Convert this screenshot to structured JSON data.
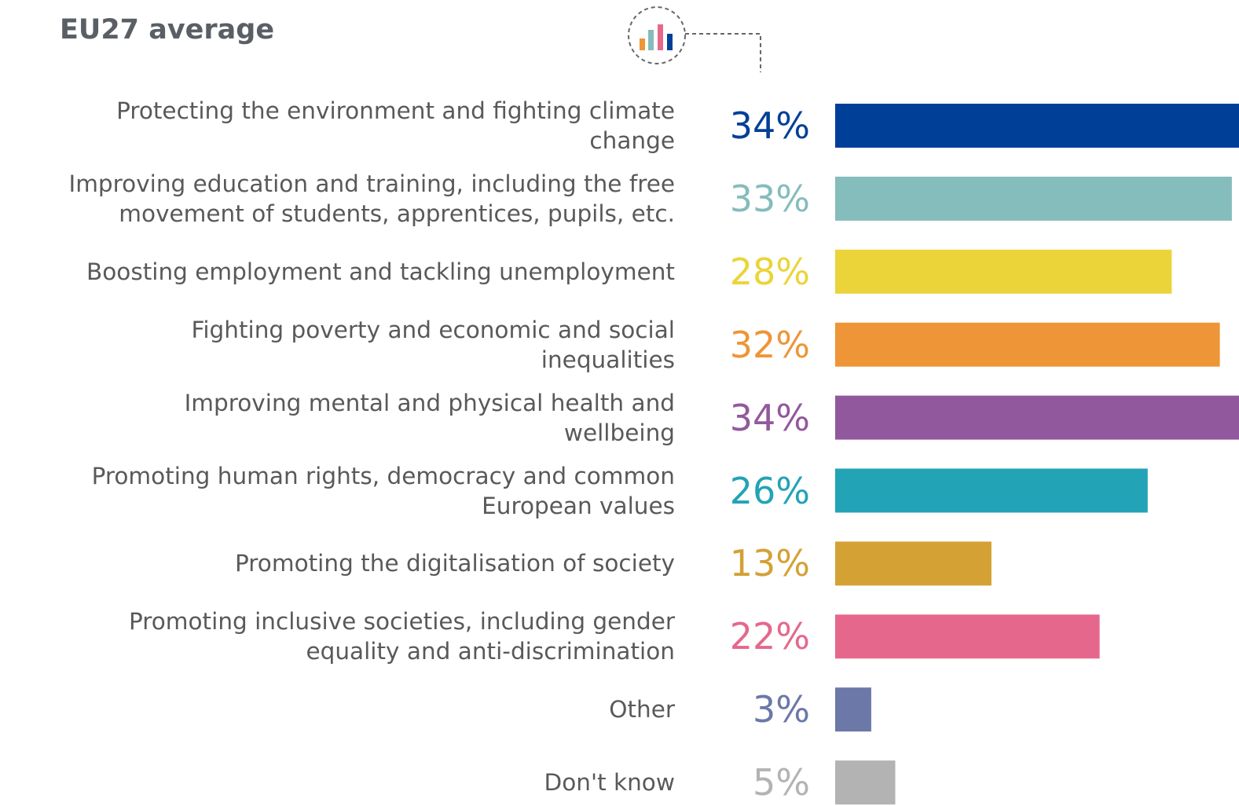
{
  "chart_data": {
    "type": "bar",
    "orientation": "horizontal",
    "title": "EU27 average",
    "categories": [
      "Protecting the environment and fighting climate\nchange",
      "Improving education and training, including the free\nmovement of students, apprentices, pupils, etc.",
      "Boosting employment and tackling unemployment",
      "Fighting poverty and economic and social\ninequalities",
      "Improving mental and physical health and\nwellbeing",
      "Promoting human rights, democracy and common\nEuropean values",
      "Promoting the digitalisation of society",
      "Promoting inclusive societies, including gender\nequality and anti-discrimination",
      "Other",
      "Don't know"
    ],
    "values": [
      34,
      33,
      28,
      32,
      34,
      26,
      13,
      22,
      3,
      5
    ],
    "value_labels": [
      "34%",
      "33%",
      "28%",
      "32%",
      "34%",
      "26%",
      "13%",
      "22%",
      "3%",
      "5%"
    ],
    "colors": [
      "#003f98",
      "#85bcbc",
      "#ebd43a",
      "#ee9537",
      "#92589d",
      "#22a3b6",
      "#d4a135",
      "#e5688c",
      "#6b78a8",
      "#b3b3b3"
    ]
  }
}
